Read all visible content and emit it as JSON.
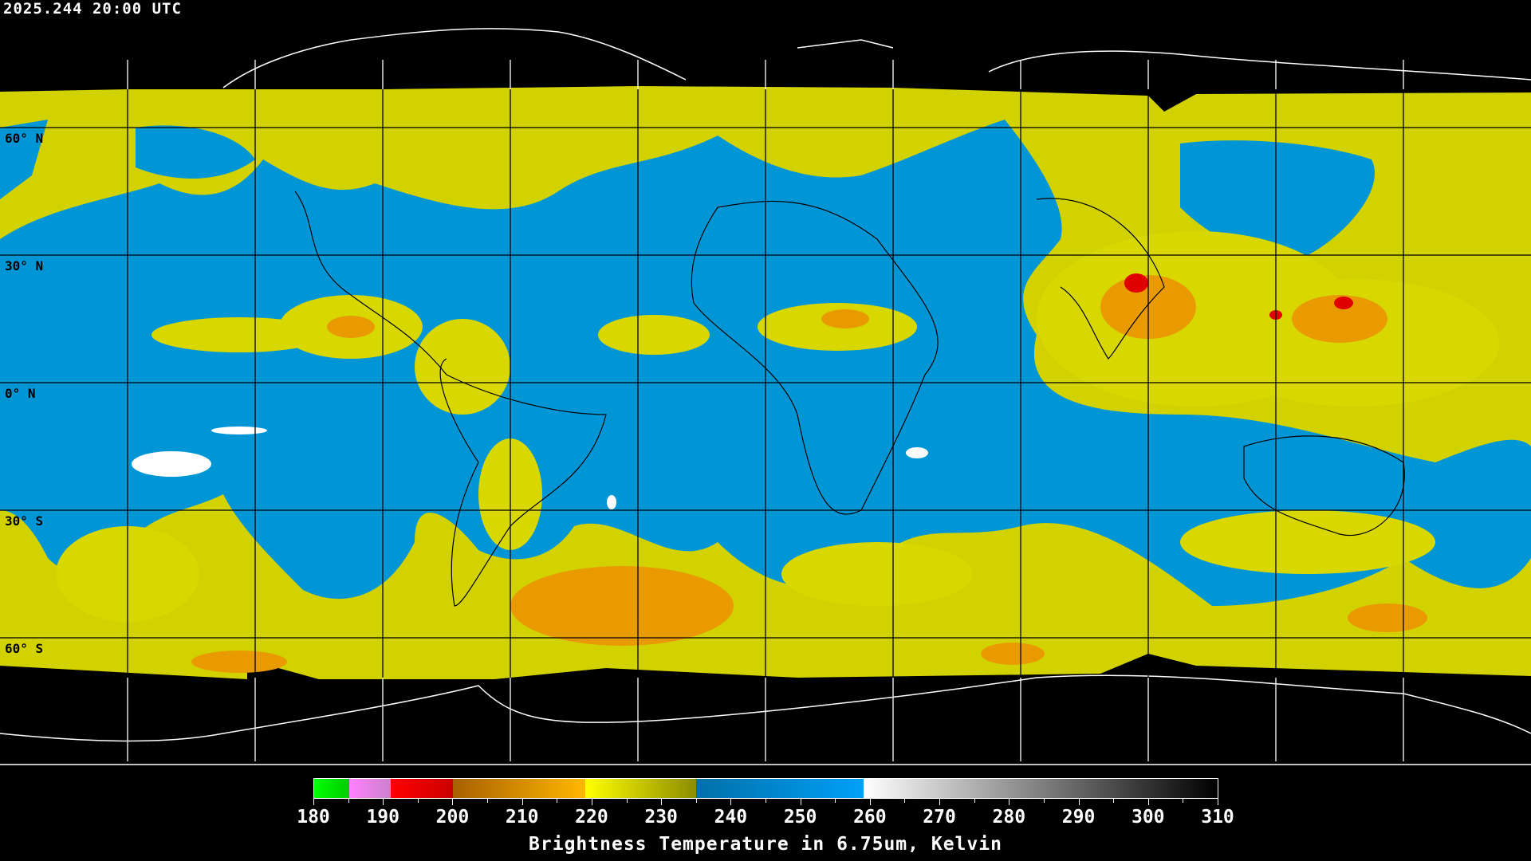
{
  "header": {
    "timestamp": "2025.244 20:00 UTC"
  },
  "map": {
    "projection": "equirectangular",
    "lat_labels": [
      "60° N",
      "30° N",
      "0° N",
      "30° S",
      "60° S"
    ],
    "grid_spacing_deg": 30
  },
  "colorbar": {
    "title": "Brightness Temperature in 6.75um, Kelvin",
    "range": [
      180,
      310
    ],
    "tick_labels": [
      "180",
      "190",
      "200",
      "210",
      "220",
      "230",
      "240",
      "250",
      "260",
      "270",
      "280",
      "290",
      "300",
      "310"
    ],
    "segments": [
      {
        "from": 180,
        "to": 185,
        "colors": [
          "#00ff00",
          "#00cc00"
        ]
      },
      {
        "from": 185,
        "to": 191,
        "colors": [
          "#ff80ff",
          "#cc80cc"
        ]
      },
      {
        "from": 191,
        "to": 200,
        "colors": [
          "#ff0000",
          "#cc0000"
        ]
      },
      {
        "from": 200,
        "to": 219,
        "colors": [
          "#a86000",
          "#ffb800"
        ]
      },
      {
        "from": 219,
        "to": 235,
        "colors": [
          "#ffff00",
          "#8c8c00"
        ]
      },
      {
        "from": 235,
        "to": 259,
        "colors": [
          "#0070a8",
          "#00a0f8"
        ]
      },
      {
        "from": 259,
        "to": 310,
        "colors": [
          "#ffffff",
          "#000000"
        ]
      }
    ]
  },
  "colors": {
    "moist_blue": "#0095d8",
    "dry_yellow": "#d8d800",
    "cold_orange": "#e89a00",
    "deep_red": "#e00000"
  }
}
